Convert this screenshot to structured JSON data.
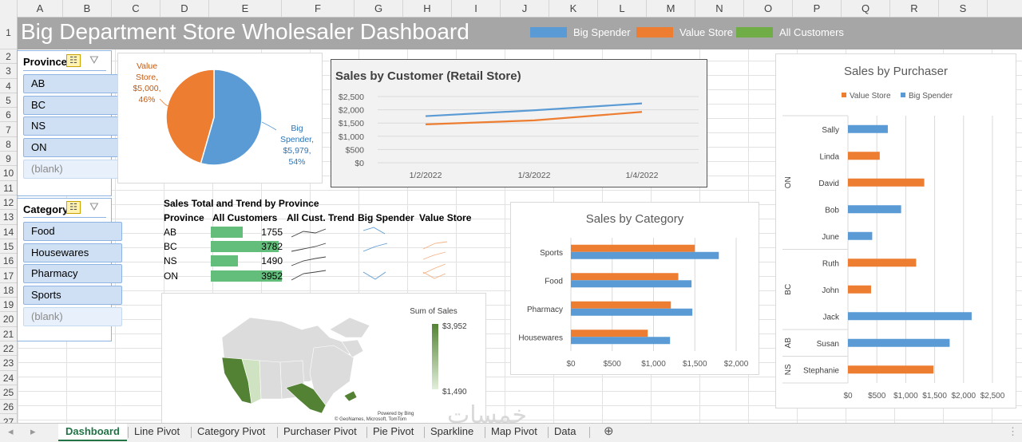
{
  "columns": [
    "A",
    "B",
    "C",
    "D",
    "E",
    "F",
    "G",
    "H",
    "I",
    "J",
    "K",
    "L",
    "M",
    "N",
    "O",
    "P",
    "Q",
    "R",
    "S"
  ],
  "rows": [
    "1",
    "2",
    "3",
    "4",
    "5",
    "6",
    "7",
    "8",
    "9",
    "10",
    "11",
    "12",
    "13",
    "14",
    "15",
    "16",
    "17",
    "18",
    "19",
    "20",
    "21",
    "22",
    "23",
    "24",
    "25",
    "26",
    "27"
  ],
  "dashboard": {
    "title": "Big Department Store Wholesaler Dashboard",
    "legend": [
      {
        "label": "Big Spender",
        "color": "#5b9bd5"
      },
      {
        "label": "Value Store",
        "color": "#ed7d31"
      },
      {
        "label": "All Customers",
        "color": "#70ad47"
      }
    ]
  },
  "slicers": {
    "province": {
      "title": "Province",
      "items": [
        "AB",
        "BC",
        "NS",
        "ON",
        "(blank)"
      ]
    },
    "category": {
      "title": "Category",
      "items": [
        "Food",
        "Housewares",
        "Pharmacy",
        "Sports",
        "(blank)"
      ]
    }
  },
  "pie": {
    "value_store_label": [
      "Value",
      "Store,",
      "$5,000,",
      "46%"
    ],
    "big_spender_label": [
      "Big",
      "Spender,",
      "$5,979,",
      "54%"
    ]
  },
  "table": {
    "title": "Sales Total and Trend by Province",
    "headers": [
      "Province",
      "All Customers",
      "All Cust. Trend",
      "Big Spender",
      "Value Store"
    ],
    "rows": [
      {
        "province": "AB",
        "total": "1755"
      },
      {
        "province": "BC",
        "total": "3782"
      },
      {
        "province": "NS",
        "total": "1490"
      },
      {
        "province": "ON",
        "total": "3952"
      }
    ]
  },
  "map": {
    "legend_title": "Sum of Sales",
    "max_label": "$3,952",
    "min_label": "$1,490",
    "credit_1": "Powered by Bing",
    "credit_2": "© GeoNames, Microsoft, TomTom"
  },
  "watermark": "خمسات",
  "chart_data": [
    {
      "type": "pie",
      "slices": [
        {
          "name": "Big Spender",
          "value": 5979,
          "percent": 54,
          "color": "#5b9bd5"
        },
        {
          "name": "Value Store",
          "value": 5000,
          "percent": 46,
          "color": "#ed7d31"
        }
      ]
    },
    {
      "type": "line",
      "title": "Sales by Customer (Retail Store)",
      "categories": [
        "1/2/2022",
        "1/3/2022",
        "1/4/2022"
      ],
      "yticks": [
        "$2,500",
        "$2,000",
        "$1,500",
        "$1,000",
        "$500",
        "$0"
      ],
      "ylim": [
        0,
        2500
      ],
      "series": [
        {
          "name": "Big Spender",
          "values": [
            1760,
            1980,
            2240
          ],
          "color": "#5b9bd5"
        },
        {
          "name": "Value Store",
          "values": [
            1450,
            1600,
            1920
          ],
          "color": "#ed7d31"
        }
      ]
    },
    {
      "type": "bar",
      "title": "Sales by Category",
      "categories": [
        "Sports",
        "Food",
        "Pharmacy",
        "Housewares"
      ],
      "xticks": [
        "$0",
        "$500",
        "$1,000",
        "$1,500",
        "$2,000"
      ],
      "xlim": [
        0,
        2000
      ],
      "series": [
        {
          "name": "Value Store",
          "values": [
            1500,
            1300,
            1210,
            930
          ],
          "color": "#ed7d31"
        },
        {
          "name": "Big Spender",
          "values": [
            1790,
            1460,
            1470,
            1200
          ],
          "color": "#5b9bd5"
        }
      ]
    },
    {
      "type": "bar",
      "title": "Sales by Purchaser",
      "legend": [
        "Value Store",
        "Big Spender"
      ],
      "groups": [
        {
          "name": "ON",
          "people": [
            {
              "name": "Sally",
              "series": "Big Spender",
              "value": 690
            },
            {
              "name": "Linda",
              "series": "Value Store",
              "value": 550
            },
            {
              "name": "David",
              "series": "Value Store",
              "value": 1320
            },
            {
              "name": "Bob",
              "series": "Big Spender",
              "value": 920
            },
            {
              "name": "June",
              "series": "Big Spender",
              "value": 420
            }
          ]
        },
        {
          "name": "BC",
          "people": [
            {
              "name": "Ruth",
              "series": "Value Store",
              "value": 1180
            },
            {
              "name": "John",
              "series": "Value Store",
              "value": 400
            },
            {
              "name": "Jack",
              "series": "Big Spender",
              "value": 2140
            }
          ]
        },
        {
          "name": "AB",
          "people": [
            {
              "name": "Susan",
              "series": "Big Spender",
              "value": 1760
            }
          ]
        },
        {
          "name": "NS",
          "people": [
            {
              "name": "Stephanie",
              "series": "Value Store",
              "value": 1480
            }
          ]
        }
      ],
      "xticks": [
        "$0",
        "$500",
        "$1,000",
        "$1,500",
        "$2,000",
        "$2,500"
      ],
      "xlim": [
        0,
        2500
      ]
    }
  ],
  "tabs": [
    "Dashboard",
    "Line Pivot",
    "Category Pivot",
    "Purchaser Pivot",
    "Pie Pivot",
    "Sparkline",
    "Map Pivot",
    "Data"
  ]
}
